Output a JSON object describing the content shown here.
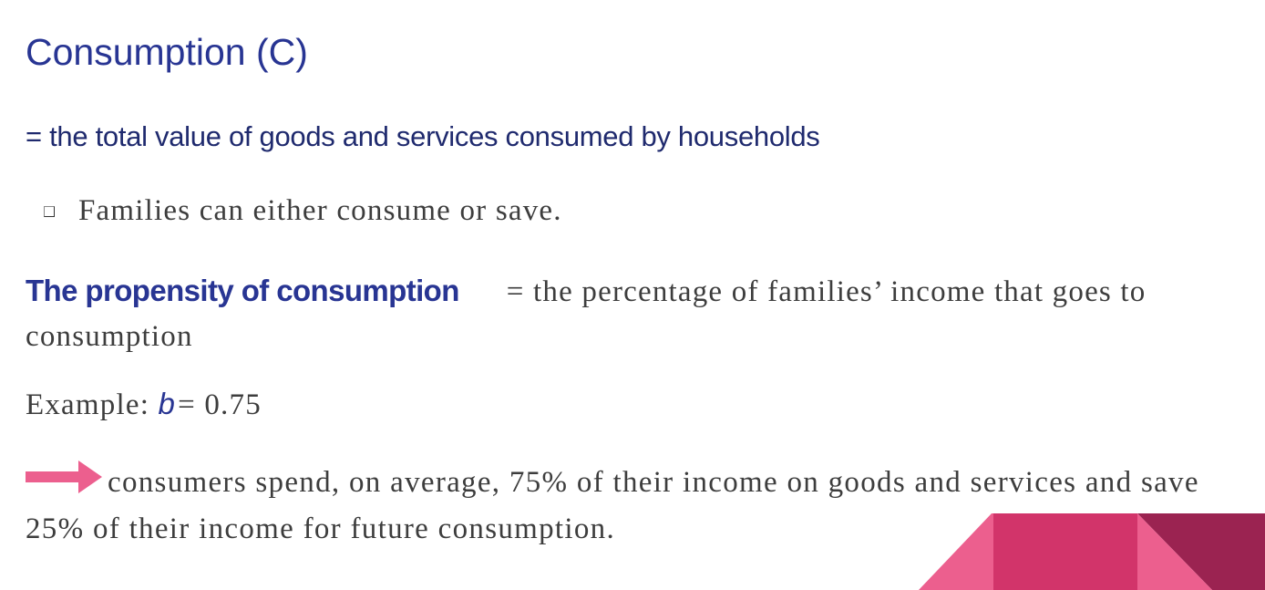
{
  "slide": {
    "title": "Consumption (C)",
    "definition": "= the total value of goods and services consumed by households",
    "bullet": "Families can either consume or save.",
    "propensity_term": "The propensity of consumption",
    "propensity_definition": "= the percentage of families’ income that goes to consumption",
    "example_label": "Example:",
    "example_variable": "b",
    "example_value": "= 0.75",
    "conclusion": "consumers spend, on average, 75% of their income on goods and services and save 25% of their income for future consumption."
  },
  "colors": {
    "title": "#283593",
    "arrow": "#ec5f8e",
    "decor_light_pink": "#ec5f8e",
    "decor_magenta": "#d2346a",
    "decor_dark": "#9b2351"
  },
  "icons": {
    "bullet": "square-bullet-icon",
    "arrow": "right-arrow-icon"
  }
}
